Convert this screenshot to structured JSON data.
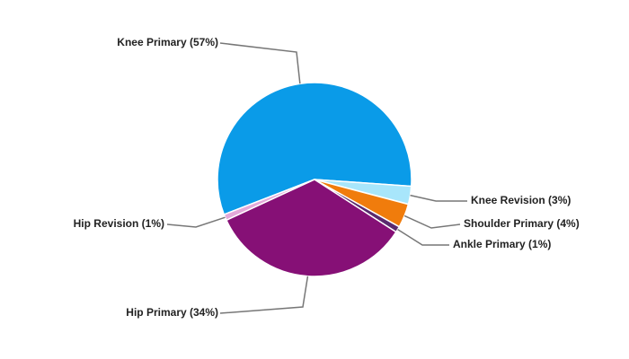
{
  "chart_data": {
    "type": "pie",
    "values": [
      57,
      3,
      4,
      1,
      34,
      1
    ],
    "value_labels": [
      "Knee Primary (57%)",
      "Knee Revision (3%)",
      "Shoulder Primary (4%)",
      "Ankle Primary (1%)",
      "Hip Primary (34%)",
      "Hip Revision (1%)"
    ],
    "colors": [
      "#0a9be8",
      "#a8e6fb",
      "#f07c0c",
      "#5a2a6e",
      "#861076",
      "#e3a9d9"
    ]
  }
}
